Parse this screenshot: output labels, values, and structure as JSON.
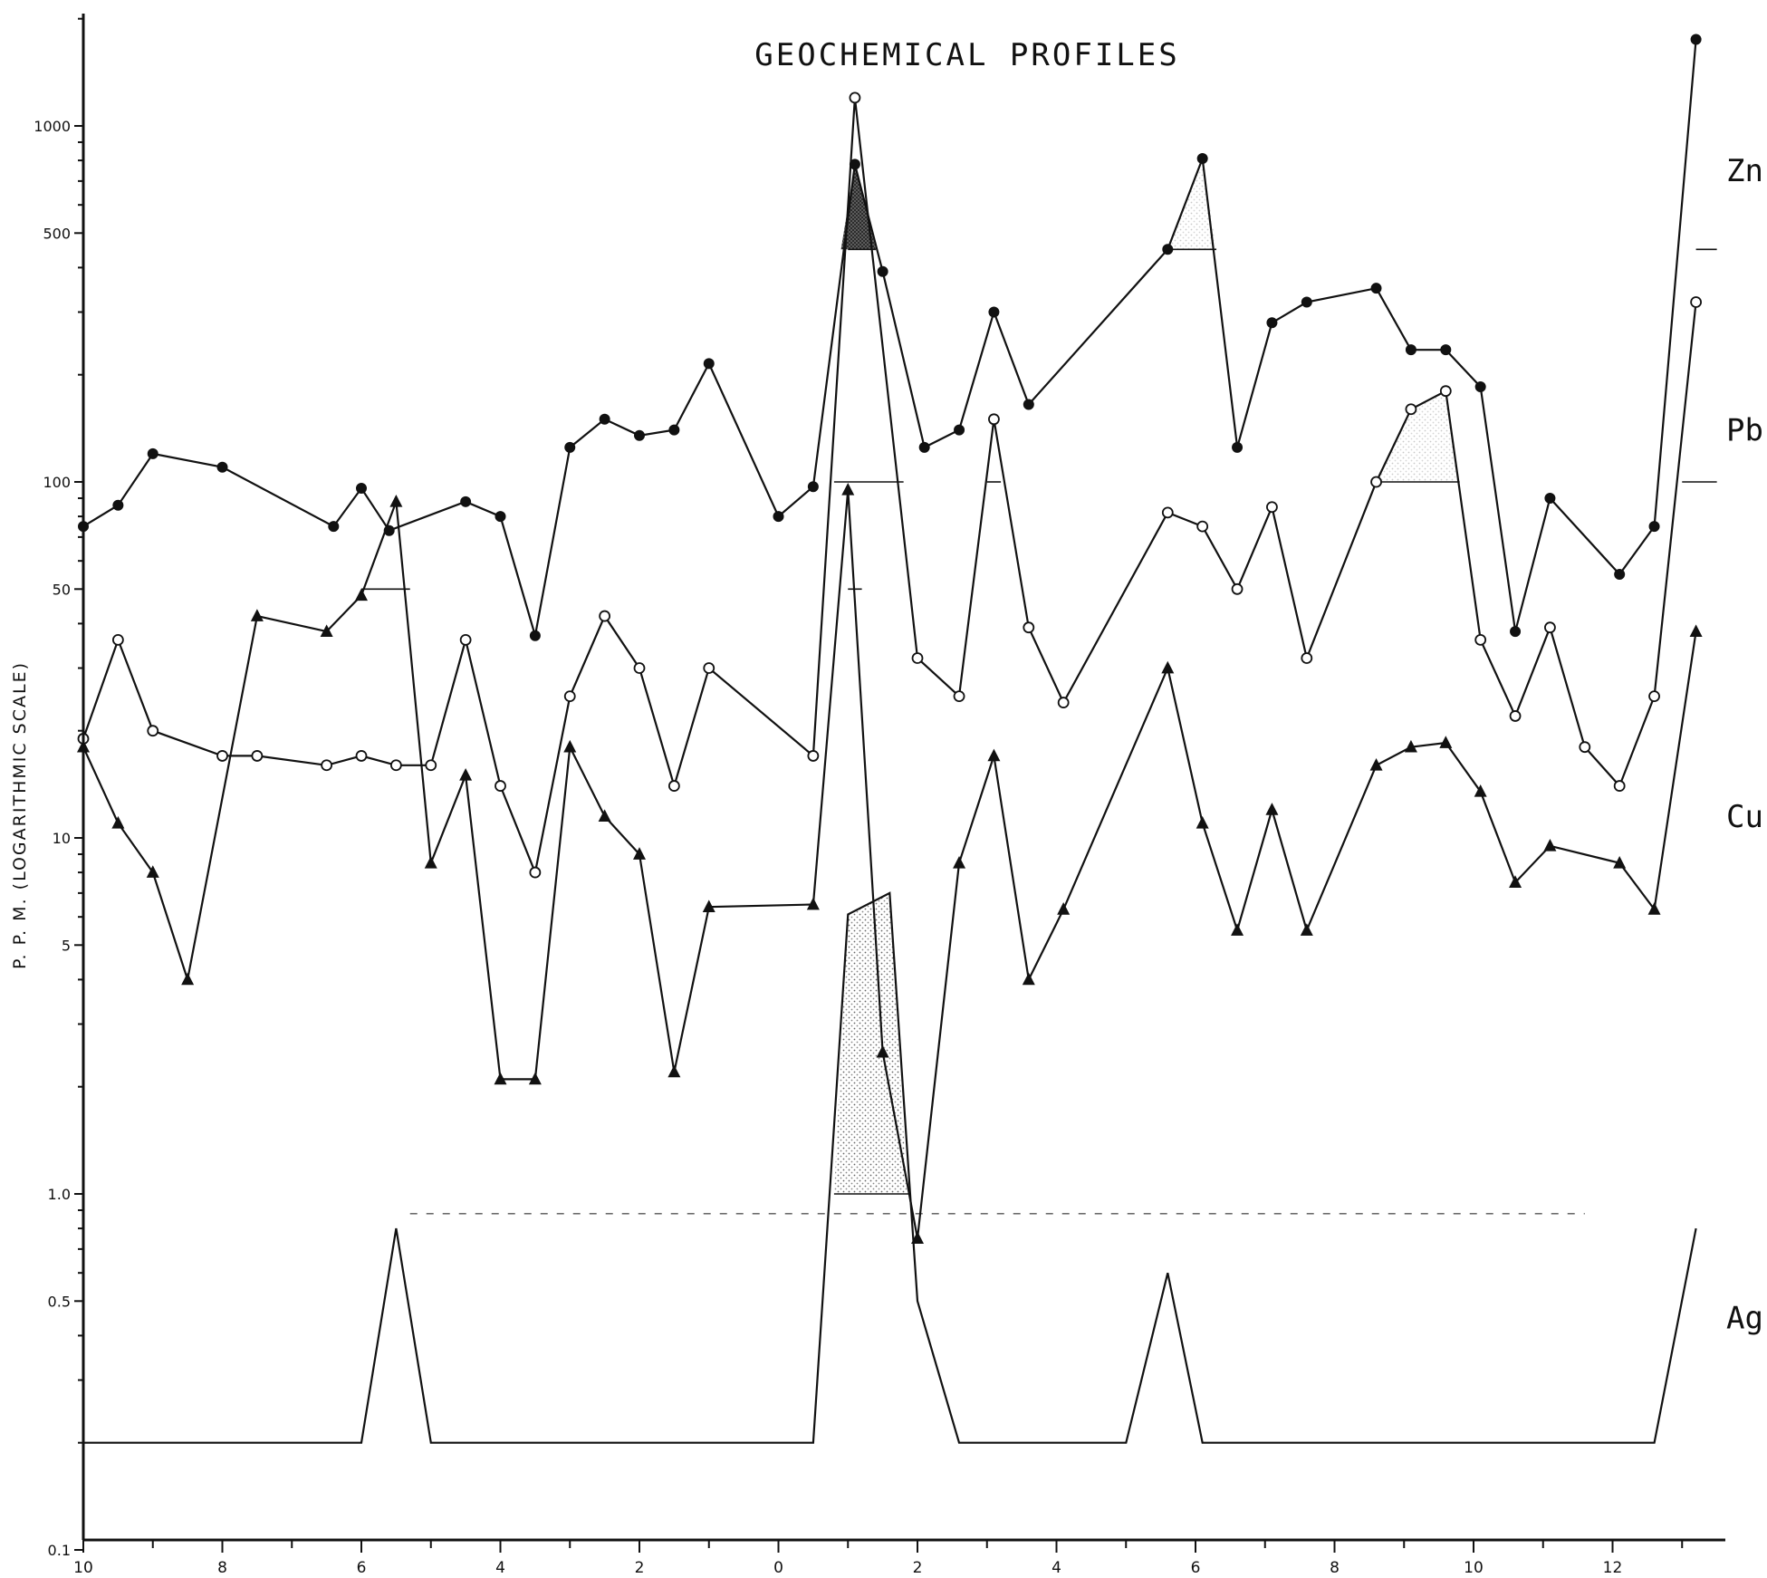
{
  "chart_data": {
    "type": "line",
    "title": "GEOCHEMICAL PROFILES",
    "ylabel": "P. P. M.   (LOGARITHMIC SCALE)",
    "xlabel": "",
    "yscale": "log",
    "ylim": [
      0.1,
      2000
    ],
    "xlim": [
      -10,
      13.5
    ],
    "x_ticks": [
      -10,
      -8,
      -6,
      -4,
      -2,
      0,
      2,
      4,
      6,
      8,
      10,
      12
    ],
    "x_tick_labels": [
      "10",
      "8",
      "6",
      "4",
      "2",
      "0",
      "2",
      "4",
      "6",
      "8",
      "10",
      "12"
    ],
    "y_tick_values": [
      0.1,
      0.5,
      1.0,
      5,
      10,
      50,
      100,
      500,
      1000
    ],
    "y_tick_labels": [
      "0.1",
      "0.5",
      "1.0",
      "5",
      "10",
      "50",
      "100",
      "500",
      "1000"
    ],
    "grid": false,
    "legend": "series labels at right edge",
    "series": [
      {
        "name": "Zn",
        "marker": "filled-circle",
        "x": [
          -10,
          -9.5,
          -9,
          -8,
          -6.4,
          -6,
          -5.6,
          -4.5,
          -4,
          -3.5,
          -3,
          -2.5,
          -2,
          -1.5,
          -1,
          0,
          0.5,
          1.1,
          1.5,
          2.1,
          2.6,
          3.1,
          3.6,
          5.6,
          6.1,
          6.6,
          7.1,
          7.6,
          8.6,
          9.1,
          9.6,
          10.1,
          10.6,
          11.1,
          12.1,
          12.6,
          13.2
        ],
        "y": [
          75,
          86,
          120,
          110,
          75,
          96,
          73,
          88,
          80,
          37,
          125,
          150,
          135,
          140,
          215,
          80,
          97,
          780,
          390,
          125,
          140,
          300,
          165,
          450,
          810,
          125,
          280,
          320,
          350,
          235,
          235,
          185,
          38,
          90,
          55,
          75,
          1750
        ]
      },
      {
        "name": "Pb",
        "marker": "open-circle",
        "x": [
          -10,
          -9.5,
          -9,
          -8,
          -7.5,
          -6.5,
          -6,
          -5.5,
          -5,
          -4.5,
          -4,
          -3.5,
          -3,
          -2.5,
          -2,
          -1.5,
          -1,
          0.5,
          1.1,
          2,
          2.6,
          3.1,
          3.6,
          4.1,
          5.6,
          6.1,
          6.6,
          7.1,
          7.6,
          8.6,
          9.1,
          9.6,
          10.1,
          10.6,
          11.1,
          11.6,
          12.1,
          12.6,
          13.2
        ],
        "y": [
          19,
          36,
          20,
          17,
          17,
          16,
          17,
          16,
          16,
          36,
          14,
          8,
          25,
          42,
          30,
          14,
          30,
          17,
          1200,
          32,
          25,
          150,
          39,
          24,
          82,
          75,
          50,
          85,
          32,
          100,
          160,
          180,
          36,
          22,
          39,
          18,
          14,
          25,
          320
        ]
      },
      {
        "name": "Cu",
        "marker": "filled-triangle",
        "x": [
          -10,
          -9.5,
          -9,
          -8.5,
          -7.5,
          -6.5,
          -6,
          -5.5,
          -5,
          -4.5,
          -4,
          -3.5,
          -3,
          -2.5,
          -2,
          -1.5,
          -1,
          0.5,
          1,
          1.5,
          2,
          2.6,
          3.1,
          3.6,
          4.1,
          5.6,
          6.1,
          6.6,
          7.1,
          7.6,
          8.6,
          9.1,
          9.6,
          10.1,
          10.6,
          11.1,
          12.1,
          12.6,
          13.2
        ],
        "y": [
          18,
          11,
          8,
          4,
          42,
          38,
          48,
          88,
          8.5,
          15,
          2.1,
          2.1,
          18,
          11.5,
          9,
          2.2,
          6.4,
          6.5,
          95,
          2.5,
          0.75,
          8.5,
          17,
          4,
          6.3,
          30,
          11,
          5.5,
          12,
          5.5,
          16,
          18,
          18.5,
          13.5,
          7.5,
          9.5,
          8.5,
          6.3,
          38
        ]
      },
      {
        "name": "Ag",
        "marker": "none",
        "x": [
          -10,
          -6,
          -5.5,
          -5,
          0.5,
          1,
          1.6,
          2,
          2.6,
          5,
          5.6,
          6.1,
          12.6,
          13.2
        ],
        "y": [
          0.2,
          0.2,
          0.8,
          0.2,
          0.2,
          6.1,
          7,
          0.5,
          0.2,
          0.2,
          0.6,
          0.2,
          0.2,
          0.8
        ]
      }
    ],
    "thresholds": [
      {
        "series": "Zn",
        "value": 450
      },
      {
        "series": "Pb",
        "value": 100
      },
      {
        "series": "Cu",
        "value": 50
      },
      {
        "series": "Ag",
        "value": 1.0
      }
    ]
  }
}
